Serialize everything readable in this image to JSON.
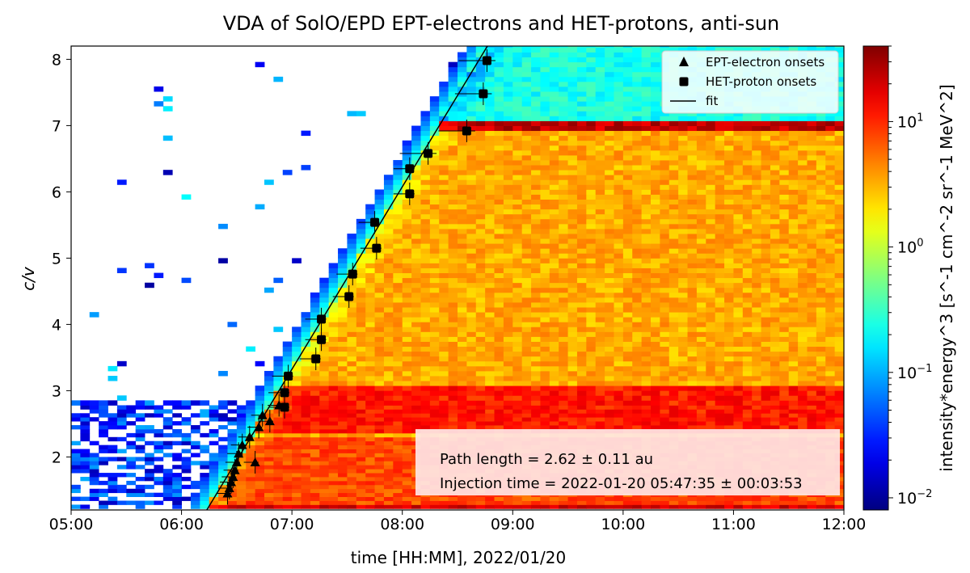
{
  "chart_data": {
    "type": "heatmap",
    "title": "VDA of SolO/EPD EPT-electrons and HET-protons, anti-sun",
    "xlabel": "time [HH:MM], 2022/01/20",
    "ylabel": "c/v",
    "colorbar_label": "intensity*energy^3 [s^-1 cm^-2 sr^-1 MeV^2]",
    "colormap": "jet",
    "colorbar_scale": "log",
    "colorbar_range": [
      0.008,
      40
    ],
    "colorbar_ticks": [
      {
        "value": 0.01,
        "label": "10^-2"
      },
      {
        "value": 0.1,
        "label": "10^-1"
      },
      {
        "value": 1,
        "label": "10^0"
      },
      {
        "value": 10,
        "label": "10^1"
      }
    ],
    "xlim": [
      "05:00",
      "12:00"
    ],
    "ylim": [
      1.2,
      8.2
    ],
    "x_ticks": [
      "05:00",
      "06:00",
      "07:00",
      "08:00",
      "09:00",
      "10:00",
      "11:00",
      "12:00"
    ],
    "y_ticks": [
      2,
      3,
      4,
      5,
      6,
      7,
      8
    ],
    "legend_position": "top-right",
    "legend": [
      {
        "label": "EPT-electron onsets",
        "marker": "triangle"
      },
      {
        "label": "HET-proton onsets",
        "marker": "square"
      },
      {
        "label": "fit",
        "marker": "line"
      }
    ],
    "series": [
      {
        "name": "EPT-electron onsets",
        "marker": "triangle",
        "points": [
          {
            "time": "06:25",
            "cv": 1.45
          },
          {
            "time": "06:26",
            "cv": 1.53
          },
          {
            "time": "06:27",
            "cv": 1.62
          },
          {
            "time": "06:28",
            "cv": 1.7
          },
          {
            "time": "06:29",
            "cv": 1.8
          },
          {
            "time": "06:30",
            "cv": 1.92
          },
          {
            "time": "06:31",
            "cv": 2.05
          },
          {
            "time": "06:33",
            "cv": 2.18
          },
          {
            "time": "06:37",
            "cv": 2.3
          },
          {
            "time": "06:40",
            "cv": 1.92
          },
          {
            "time": "06:42",
            "cv": 2.45
          },
          {
            "time": "06:44",
            "cv": 2.63
          },
          {
            "time": "06:48",
            "cv": 2.54
          },
          {
            "time": "06:53",
            "cv": 2.78
          }
        ]
      },
      {
        "name": "HET-proton onsets",
        "marker": "square",
        "points": [
          {
            "time": "06:56",
            "cv": 2.75
          },
          {
            "time": "06:56",
            "cv": 2.97
          },
          {
            "time": "06:58",
            "cv": 3.22
          },
          {
            "time": "07:13",
            "cv": 3.48
          },
          {
            "time": "07:16",
            "cv": 3.77
          },
          {
            "time": "07:16",
            "cv": 4.08
          },
          {
            "time": "07:31",
            "cv": 4.42
          },
          {
            "time": "07:33",
            "cv": 4.76
          },
          {
            "time": "07:46",
            "cv": 5.15
          },
          {
            "time": "07:45",
            "cv": 5.54
          },
          {
            "time": "08:04",
            "cv": 5.97
          },
          {
            "time": "08:04",
            "cv": 6.35
          },
          {
            "time": "08:14",
            "cv": 6.58
          },
          {
            "time": "08:35",
            "cv": 6.92
          },
          {
            "time": "08:44",
            "cv": 7.48
          },
          {
            "time": "08:46",
            "cv": 7.98
          }
        ]
      }
    ],
    "fit": {
      "name": "fit",
      "path_length_au": 2.62,
      "injection_time": "05:47:35"
    },
    "annotation_lines": [
      "Path length = 2.62 ± 0.11 au",
      "Injection time = 2022-01-20 05:47:35 ± 00:03:53"
    ]
  }
}
